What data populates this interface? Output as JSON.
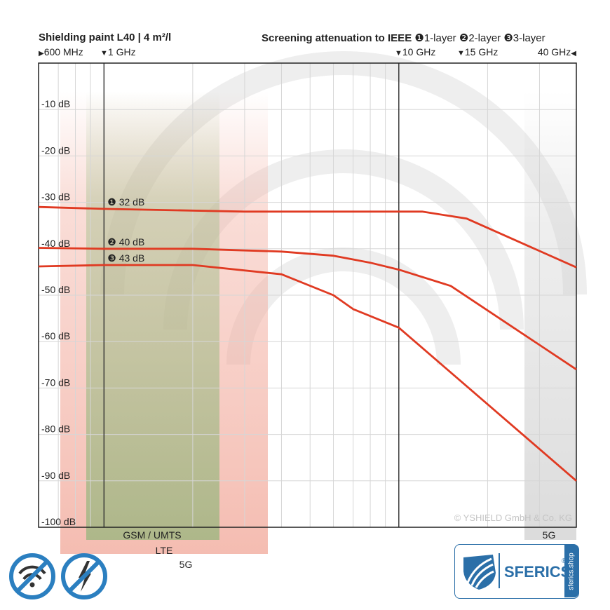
{
  "header": {
    "title": "Shielding paint L40 | 4 m²/l",
    "subtitle": "Screening attenuation to IEEE",
    "layer_legend": [
      {
        "symbol": "❶",
        "label": "1-layer"
      },
      {
        "symbol": "❷",
        "label": "2-layer"
      },
      {
        "symbol": "❸",
        "label": "3-layer"
      }
    ],
    "freq_markers": {
      "start": "600 MHz",
      "m1": "1 GHz",
      "m2": "10 GHz",
      "m3": "15 GHz",
      "end": "40 GHz"
    }
  },
  "bands": {
    "gsm": "GSM / UMTS",
    "lte": "LTE",
    "fiveg_low": "5G",
    "fiveg_high": "5G"
  },
  "copyright": "© YSHIELD GmbH & Co. KG",
  "logo": {
    "name": "SFERICS",
    "reg": "®",
    "side": "sferics.shop"
  },
  "colors": {
    "line": "#e03a22",
    "grid": "#d6d6d6",
    "accent": "#2b6fa8"
  },
  "chart_data": {
    "type": "line",
    "title": "Shielding paint L40 | 4 m²/l",
    "subtitle": "Screening attenuation to IEEE",
    "x_scale": "log",
    "x_unit": "GHz",
    "xlim": [
      0.6,
      40
    ],
    "ylim": [
      -100,
      0
    ],
    "y_ticks": [
      {
        "value": -10,
        "label": "-10 dB"
      },
      {
        "value": -20,
        "label": "-20 dB"
      },
      {
        "value": -30,
        "label": "-30 dB"
      },
      {
        "value": -40,
        "label": "-40 dB"
      },
      {
        "value": -50,
        "label": "-50 dB"
      },
      {
        "value": -60,
        "label": "-60 dB"
      },
      {
        "value": -70,
        "label": "-70 dB"
      },
      {
        "value": -80,
        "label": "-80 dB"
      },
      {
        "value": -90,
        "label": "-90 dB"
      },
      {
        "value": -100,
        "label": "-100 dB"
      }
    ],
    "x_marker_lines": [
      1,
      10
    ],
    "grid": true,
    "series": [
      {
        "name": "1-layer",
        "label": "❶ 32 dB",
        "points": [
          [
            0.6,
            -31
          ],
          [
            1,
            -31.4
          ],
          [
            3,
            -32
          ],
          [
            10,
            -32
          ],
          [
            12,
            -32
          ],
          [
            17,
            -33.5
          ],
          [
            40,
            -44
          ]
        ]
      },
      {
        "name": "2-layer",
        "label": "❷ 40 dB",
        "points": [
          [
            0.6,
            -39.8
          ],
          [
            1,
            -40
          ],
          [
            2,
            -40
          ],
          [
            4,
            -40.6
          ],
          [
            6,
            -41.5
          ],
          [
            8,
            -43
          ],
          [
            10,
            -44.5
          ],
          [
            15,
            -48
          ],
          [
            40,
            -66
          ]
        ]
      },
      {
        "name": "3-layer",
        "label": "❸ 43 dB",
        "points": [
          [
            0.6,
            -43.8
          ],
          [
            1,
            -43.5
          ],
          [
            2,
            -43.5
          ],
          [
            4,
            -45.5
          ],
          [
            6,
            -50
          ],
          [
            7,
            -53
          ],
          [
            10,
            -57
          ],
          [
            40,
            -90
          ]
        ]
      }
    ]
  }
}
